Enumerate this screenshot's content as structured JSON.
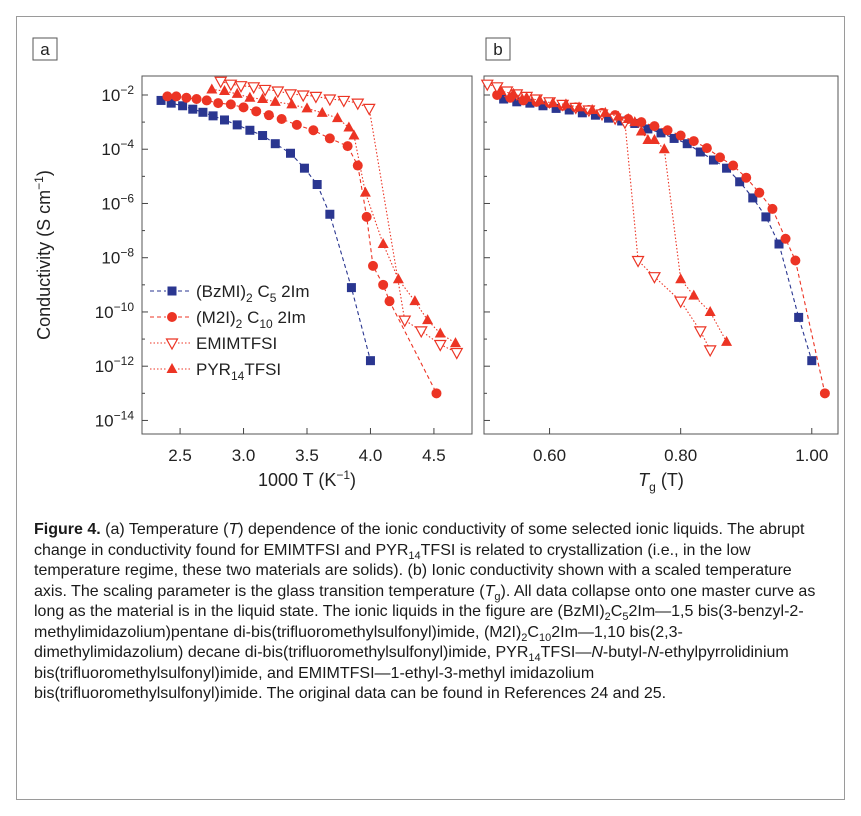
{
  "colors": {
    "blue_squares": "#2a3690",
    "red_circles": "#ec3424",
    "frame": "#9a9a9a",
    "axis": "#333333"
  },
  "chart_data": [
    {
      "panel": "a",
      "type": "scatter",
      "xlabel": "1000 T (K−1)",
      "ylabel": "Conductivity (S cm−1)",
      "xlim": [
        2.2,
        4.8
      ],
      "ylim_log10": [
        -14.5,
        -1.3
      ],
      "y_scale": "log",
      "x_ticks": [
        "2.5",
        "3.0",
        "3.5",
        "4.0",
        "4.5"
      ],
      "y_ticks": [
        "10−2",
        "10−4",
        "10−6",
        "10−8",
        "10−10",
        "10−12",
        "10−14"
      ],
      "legend": {
        "placement": "left"
      },
      "series": [
        {
          "name": "(BzMI)2 C5 2Im",
          "marker": "square",
          "style": "dashed",
          "x": [
            2.35,
            2.43,
            2.52,
            2.6,
            2.68,
            2.76,
            2.85,
            2.95,
            3.05,
            3.15,
            3.25,
            3.37,
            3.48,
            3.58,
            3.68,
            3.85,
            4.0
          ],
          "y": [
            0.0063,
            0.005,
            0.004,
            0.003,
            0.0023,
            0.0017,
            0.0012,
            0.00079,
            0.0005,
            0.00032,
            0.00016,
            7.1e-05,
            2e-05,
            5e-06,
            4e-07,
            7.9e-10,
            1.6e-12
          ]
        },
        {
          "name": "(M2I)2 C10 2Im",
          "marker": "circle",
          "style": "dashed",
          "x": [
            2.4,
            2.47,
            2.55,
            2.63,
            2.71,
            2.8,
            2.9,
            3.0,
            3.1,
            3.2,
            3.3,
            3.42,
            3.55,
            3.68,
            3.82,
            3.9,
            3.97,
            4.02,
            4.1,
            4.15,
            4.52
          ],
          "y": [
            0.0089,
            0.0089,
            0.0079,
            0.0071,
            0.0063,
            0.005,
            0.0045,
            0.0035,
            0.0025,
            0.0018,
            0.0013,
            0.00079,
            0.0005,
            0.00025,
            0.00013,
            2.5e-05,
            3.2e-07,
            5e-09,
            1e-09,
            2.5e-10,
            1e-13
          ]
        },
        {
          "name": "EMIMTFSI",
          "marker": "triangle-down-open",
          "style": "dotted",
          "x": [
            2.82,
            2.9,
            2.98,
            3.08,
            3.17,
            3.27,
            3.37,
            3.47,
            3.57,
            3.68,
            3.79,
            3.9,
            3.99,
            4.27,
            4.4,
            4.55,
            4.68
          ],
          "y": [
            0.032,
            0.025,
            0.022,
            0.02,
            0.016,
            0.014,
            0.011,
            0.01,
            0.0089,
            0.0071,
            0.0063,
            0.005,
            0.0032,
            5e-11,
            2e-11,
            6.3e-12,
            3.2e-12
          ]
        },
        {
          "name": "PYR14TFSI",
          "marker": "triangle-up",
          "style": "dotted",
          "x": [
            2.75,
            2.85,
            2.95,
            3.05,
            3.15,
            3.25,
            3.38,
            3.5,
            3.62,
            3.74,
            3.83,
            3.87,
            3.96,
            4.1,
            4.22,
            4.35,
            4.45,
            4.55,
            4.67
          ],
          "y": [
            0.016,
            0.014,
            0.011,
            0.0079,
            0.0071,
            0.0056,
            0.0045,
            0.0032,
            0.0022,
            0.0014,
            0.00063,
            0.00032,
            2.5e-06,
            3.2e-08,
            1.6e-09,
            2.5e-10,
            5e-11,
            1.6e-11,
            7.1e-12
          ]
        }
      ]
    },
    {
      "panel": "b",
      "type": "scatter",
      "xlabel": "Tg (T)",
      "xlim": [
        0.5,
        1.04
      ],
      "ylim_log10": [
        -14.5,
        -1.3
      ],
      "y_scale": "log",
      "x_ticks": [
        "0.60",
        "0.80",
        "1.00"
      ],
      "series": [
        {
          "name": "(BzMI)2 C5 2Im",
          "marker": "square",
          "style": "dashed",
          "x": [
            0.53,
            0.55,
            0.57,
            0.59,
            0.61,
            0.63,
            0.65,
            0.67,
            0.69,
            0.71,
            0.73,
            0.75,
            0.77,
            0.79,
            0.81,
            0.83,
            0.85,
            0.87,
            0.89,
            0.91,
            0.93,
            0.95,
            0.98,
            1.0
          ],
          "y": [
            0.0071,
            0.0056,
            0.005,
            0.004,
            0.0032,
            0.0028,
            0.0022,
            0.0018,
            0.0014,
            0.0011,
            0.00089,
            0.00056,
            0.0004,
            0.00025,
            0.00016,
            7.9e-05,
            4e-05,
            2e-05,
            6.3e-06,
            1.6e-06,
            3.2e-07,
            3.2e-08,
            6.3e-11,
            1.6e-12
          ]
        },
        {
          "name": "(M2I)2 C10 2Im",
          "marker": "circle",
          "style": "dashed",
          "x": [
            0.52,
            0.54,
            0.56,
            0.58,
            0.6,
            0.62,
            0.64,
            0.66,
            0.68,
            0.7,
            0.72,
            0.74,
            0.76,
            0.78,
            0.8,
            0.82,
            0.84,
            0.86,
            0.88,
            0.9,
            0.92,
            0.94,
            0.96,
            0.975,
            1.02
          ],
          "y": [
            0.01,
            0.0079,
            0.0063,
            0.0056,
            0.005,
            0.004,
            0.0035,
            0.0028,
            0.0022,
            0.0018,
            0.0013,
            0.001,
            0.00071,
            0.0005,
            0.00032,
            0.0002,
            0.00011,
            5e-05,
            2.5e-05,
            8.9e-06,
            2.5e-06,
            6.3e-07,
            5e-08,
            7.9e-09,
            1e-13
          ]
        },
        {
          "name": "EMIMTFSI",
          "marker": "triangle-down-open",
          "style": "dotted",
          "x": [
            0.505,
            0.52,
            0.535,
            0.55,
            0.565,
            0.58,
            0.6,
            0.62,
            0.64,
            0.66,
            0.68,
            0.7,
            0.715,
            0.735,
            0.76,
            0.8,
            0.83,
            0.845
          ],
          "y": [
            0.025,
            0.02,
            0.014,
            0.011,
            0.0089,
            0.0071,
            0.0056,
            0.0045,
            0.0035,
            0.0028,
            0.002,
            0.0014,
            0.001,
            7.9e-09,
            2e-09,
            2.5e-10,
            2e-11,
            4e-12
          ]
        },
        {
          "name": "PYR14TFSI",
          "marker": "triangle-up",
          "style": "dotted",
          "x": [
            0.525,
            0.545,
            0.565,
            0.585,
            0.605,
            0.625,
            0.645,
            0.665,
            0.685,
            0.705,
            0.72,
            0.73,
            0.74,
            0.75,
            0.76,
            0.775,
            0.8,
            0.82,
            0.845,
            0.87
          ],
          "y": [
            0.014,
            0.011,
            0.0079,
            0.0063,
            0.005,
            0.0045,
            0.0035,
            0.0028,
            0.0022,
            0.0016,
            0.0013,
            0.001,
            0.00045,
            0.00022,
            0.00022,
            0.0001,
            1.6e-09,
            4e-10,
            1e-10,
            7.9e-12
          ]
        }
      ]
    }
  ],
  "labels": {
    "panel_a": "a",
    "panel_b": "b",
    "ylabel_main": "Conductivity (S cm",
    "ylabel_exp": "−1",
    "ylabel_close": ")",
    "xlabel_a_main": "1000 T (K",
    "xlabel_a_exp": "−1",
    "xlabel_a_close": ")",
    "xlabel_b_T": "T",
    "xlabel_b_sub": "g",
    "xlabel_b_rest": " (T)",
    "legend": [
      {
        "pre": "(BzMI)",
        "sub1": "2",
        "mid": " C",
        "sub2": "5",
        "post": " 2Im"
      },
      {
        "pre": "(M2I)",
        "sub1": "2",
        "mid": " C",
        "sub2": "10",
        "post": " 2Im"
      },
      {
        "pre": "EMIMTFSI",
        "sub1": "",
        "mid": "",
        "sub2": "",
        "post": ""
      },
      {
        "pre": "PYR",
        "sub1": "14",
        "mid": "TFSI",
        "sub2": "",
        "post": ""
      }
    ]
  },
  "caption": {
    "label": "Figure 4.",
    "p1": " (a) Temperature (",
    "T1": "T",
    "p2": ") dependence of the ionic conductivity of some selected ionic liquids. The abrupt change in conductivity found for EMIMTFSI and PYR",
    "s1": "14",
    "p3": "TFSI is related to crystallization (i.e., in the low temperature regime, these two materials are solids). (b) Ionic conductivity shown with a scaled temperature axis. The scaling parameter is the glass transition temperature (",
    "T2": "T",
    "s2": "g",
    "p4": "). All data collapse onto one master curve as long as the material is in the liquid state. The ionic liquids in the figure are (BzMI)",
    "s3": "2",
    "p5": "C",
    "s4": "5",
    "p6": "2Im—1,5 bis(3-benzyl-2-methylimidazolium)pentane di-bis(trifluoromethylsulfonyl)imide, (M2I)",
    "s5": "2",
    "p7": "C",
    "s6": "10",
    "p8": "2Im—1,10 bis(2,3-dimethylimidazolium) decane di-bis(trifluoromethylsulfonyl)imide, PYR",
    "s7": "14",
    "p9": "TFSI—",
    "N1": "N",
    "p10": "-butyl-",
    "N2": "N",
    "p11": "-ethylpyrrolidinium bis(trifluoromethylsulfonyl)imide, and EMIMTFSI—1-ethyl-3-methyl imidazolium bis(trifluoromethylsulfonyl)imide. The original data can be found in References 24 and 25."
  }
}
